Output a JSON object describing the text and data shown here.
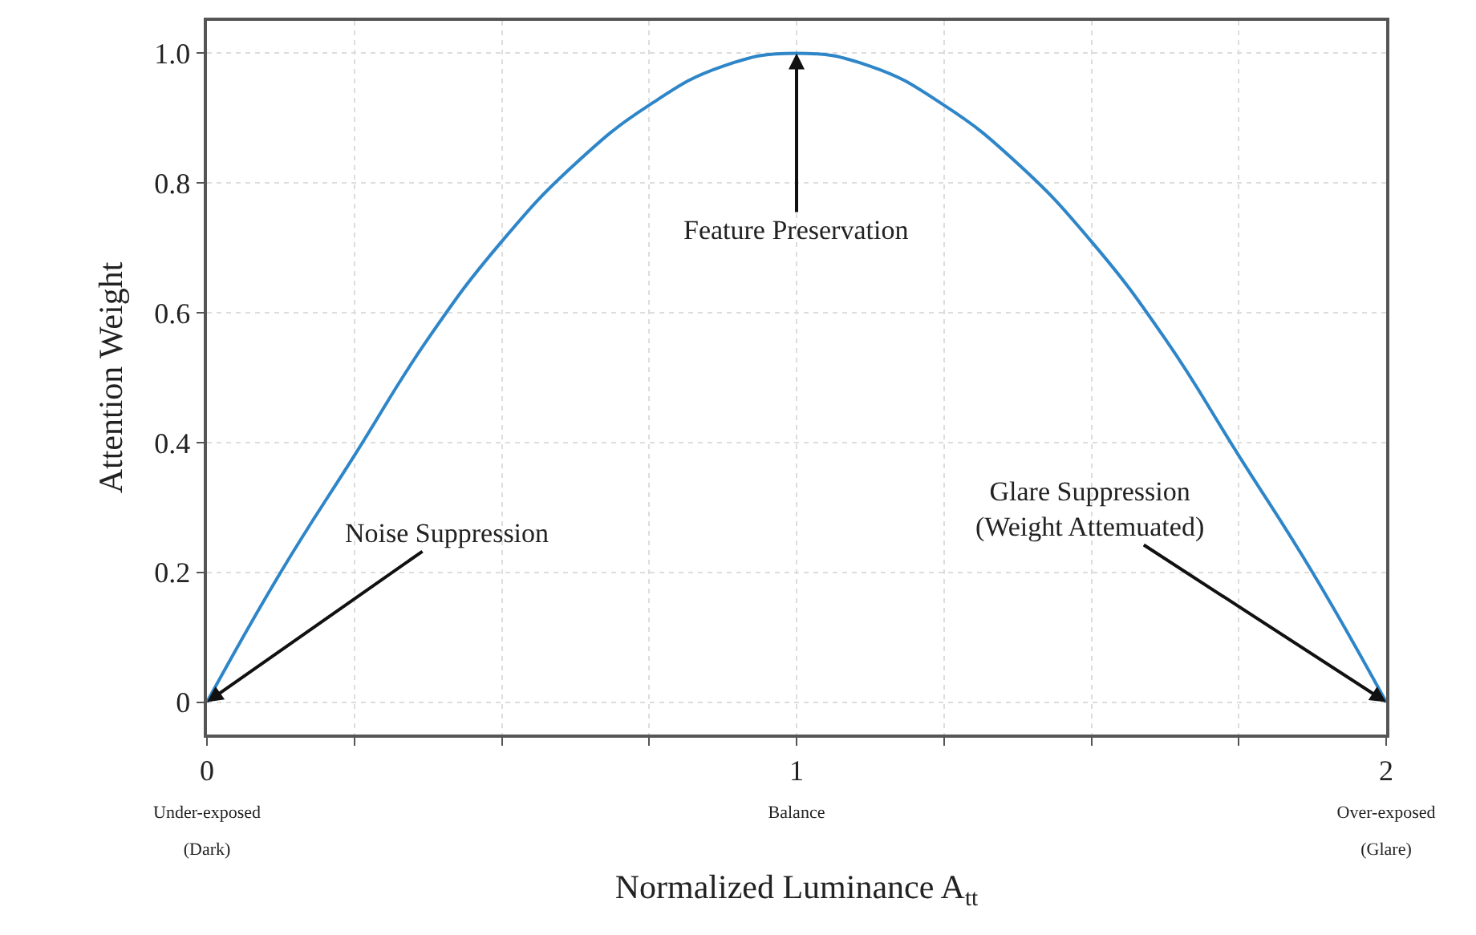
{
  "chart_data": {
    "type": "line",
    "xlabel": "Normalized Luminance A$_{tt}$",
    "ylabel": "Attention Weight",
    "x": [
      0,
      0.125,
      0.25,
      0.375,
      0.5,
      0.625,
      0.75,
      0.875,
      1,
      1.125,
      1.25,
      1.375,
      1.5,
      1.625,
      1.75,
      1.875,
      2
    ],
    "series": [
      {
        "color": "#2e86c8",
        "values": [
          0,
          0.2,
          0.38,
          0.56,
          0.71,
          0.83,
          0.92,
          0.98,
          1,
          0.98,
          0.92,
          0.83,
          0.71,
          0.56,
          0.38,
          0.2,
          0
        ]
      }
    ],
    "xlim": [
      0,
      2
    ],
    "ylim": [
      -0.05,
      1.05
    ],
    "xticks": [
      {
        "value": 0,
        "label": "0\nUnder-exposed\n(Dark)"
      },
      {
        "value": 0.25,
        "label": null
      },
      {
        "value": 0.5,
        "label": null
      },
      {
        "value": 0.75,
        "label": null
      },
      {
        "value": 1,
        "label": "1\nBalance"
      },
      {
        "value": 1.25,
        "label": null
      },
      {
        "value": 1.5,
        "label": null
      },
      {
        "value": 1.75,
        "label": null
      },
      {
        "value": 2,
        "label": "2\nOver-exposed\n(Glare)"
      }
    ],
    "yticks": [
      0,
      0.2,
      0.4,
      0.6,
      0.8,
      {
        "value": 1,
        "label": "1.0"
      }
    ],
    "annotations": [
      {
        "text": "Noise Suppression",
        "x": 0,
        "y": 0
      },
      {
        "text": "Feature Preservation",
        "x": 1,
        "y": 1
      },
      {
        "text": "Glare Suppression\n(Weight Attemuated)",
        "x": 2,
        "y": 0
      }
    ],
    "grid": true,
    "marker": "none",
    "line_style": "solid"
  }
}
